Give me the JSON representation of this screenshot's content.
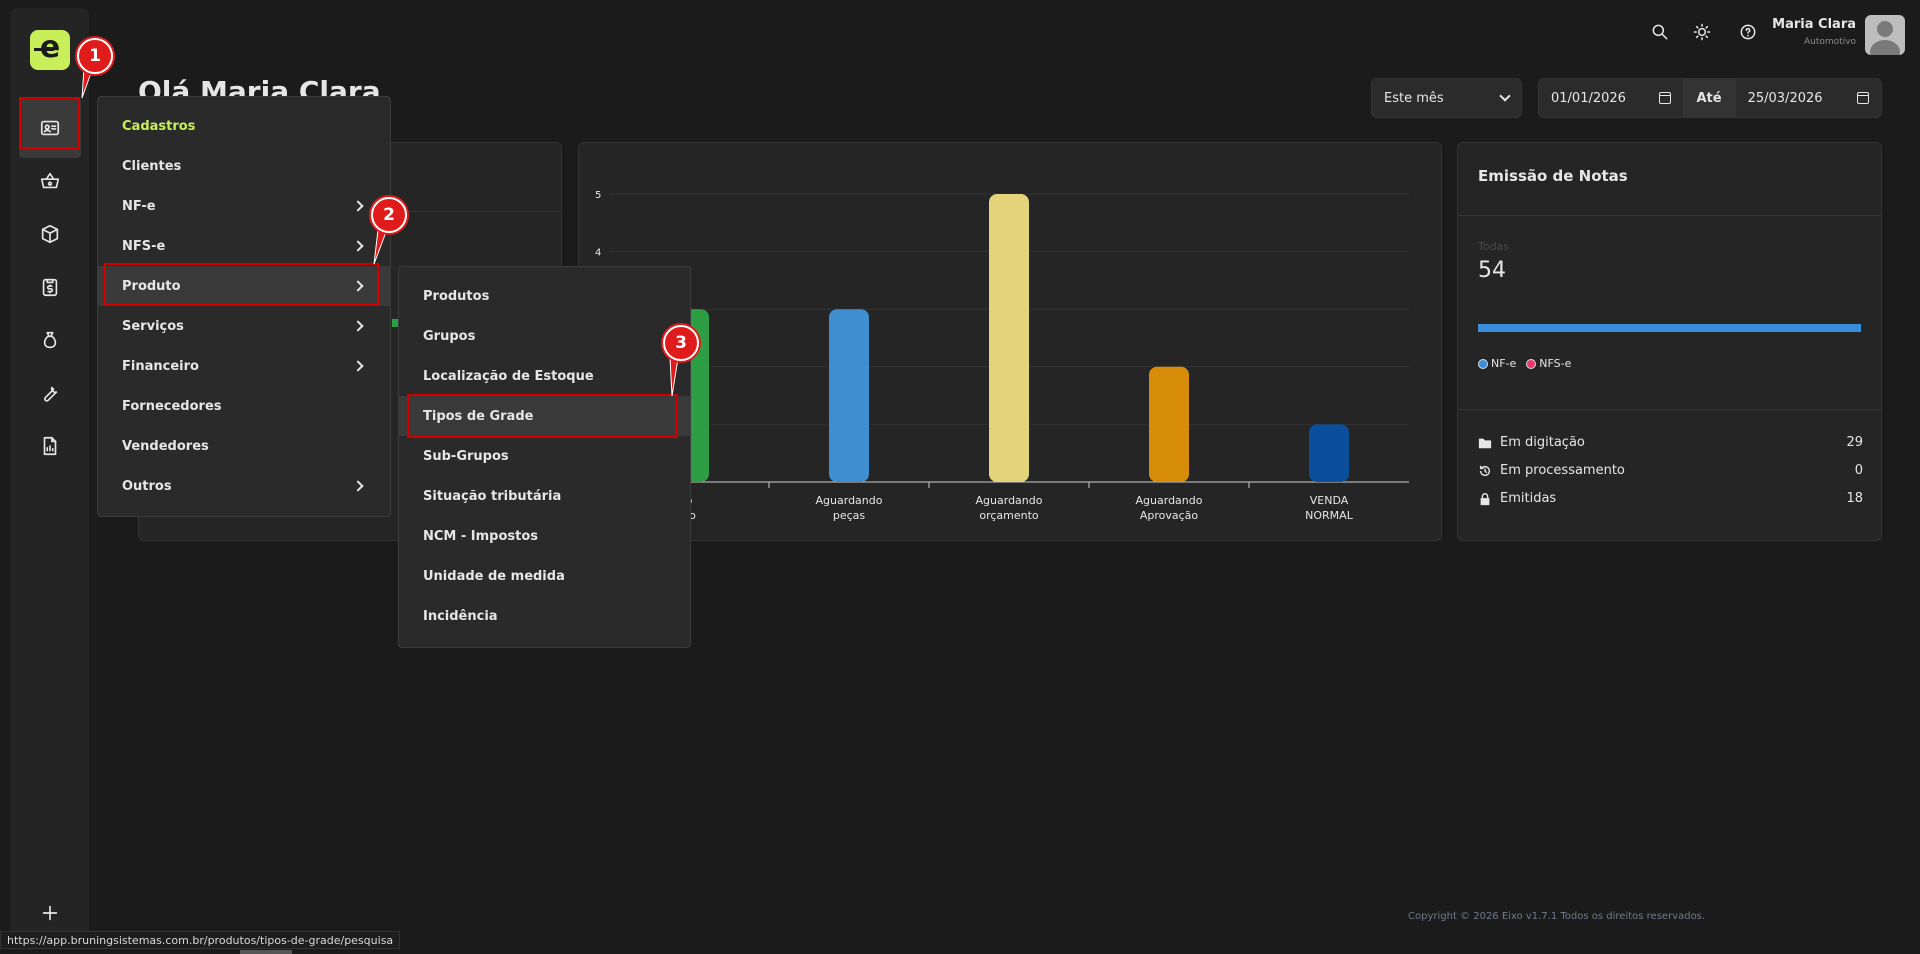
{
  "header": {
    "title": "Olá Maria Clara",
    "user_name": "Maria Clara",
    "user_role": "Automotivo",
    "icons": [
      "search-icon",
      "sun-icon",
      "help-icon"
    ]
  },
  "logo_text": "e",
  "filters": {
    "period": "Este mês",
    "date_from": "01/01/2026",
    "date_sep": "Até",
    "date_to": "25/03/2026"
  },
  "sidebar": {
    "icons": [
      "id-card-icon",
      "basket-icon",
      "box-icon",
      "clipboard-dollar-icon",
      "money-bag-icon",
      "wrench-icon",
      "report-icon",
      "plus-icon"
    ]
  },
  "menu_cadastros": {
    "title": "Cadastros",
    "items": [
      {
        "label": "Clientes",
        "submenu": false
      },
      {
        "label": "NF-e",
        "submenu": true
      },
      {
        "label": "NFS-e",
        "submenu": true
      },
      {
        "label": "Produto",
        "submenu": true
      },
      {
        "label": "Serviços",
        "submenu": true
      },
      {
        "label": "Financeiro",
        "submenu": true
      },
      {
        "label": "Fornecedores",
        "submenu": false
      },
      {
        "label": "Vendedores",
        "submenu": false
      },
      {
        "label": "Outros",
        "submenu": true
      }
    ]
  },
  "menu_produto": {
    "items": [
      "Produtos",
      "Grupos",
      "Localização de Estoque",
      "Tipos de Grade",
      "Sub-Grupos",
      "Situação tributária",
      "NCM - Impostos",
      "Unidade de medida",
      "Incidência"
    ]
  },
  "chart_data": {
    "type": "bar",
    "categories": [
      "…o …do",
      "Aguardando peças",
      "Aguardando orçamento",
      "Aguardando Aprovação",
      "VENDA NORMAL"
    ],
    "category_lines": [
      [
        "o",
        "do"
      ],
      [
        "Aguardando",
        "peças"
      ],
      [
        "Aguardando",
        "orçamento"
      ],
      [
        "Aguardando",
        "Aprovação"
      ],
      [
        "VENDA",
        "NORMAL"
      ]
    ],
    "values": [
      3,
      3,
      5,
      2,
      1
    ],
    "colors": [
      "#2e9e44",
      "#3f8ed0",
      "#e3d37a",
      "#d88d0a",
      "#0b4f9c"
    ],
    "y_ticks": [
      "4",
      "5"
    ],
    "y_tick_values": [
      4,
      5
    ],
    "ylim": [
      0,
      5
    ],
    "grid": true
  },
  "notas": {
    "title": "Emissão de Notas",
    "all_label": "Todas",
    "all_value": "54",
    "legend": [
      {
        "label": "NF-e",
        "color": "#3a8fdc"
      },
      {
        "label": "NFS-e",
        "color": "#e5386d"
      }
    ],
    "stats": [
      {
        "label": "Em digitação",
        "value": "29",
        "icon": "folder-icon"
      },
      {
        "label": "Em processamento",
        "value": "0",
        "icon": "history-icon"
      },
      {
        "label": "Emitidas",
        "value": "18",
        "icon": "lock-icon"
      }
    ]
  },
  "annotations": [
    "1",
    "2",
    "3"
  ],
  "footer": "Copyright © 2026 Eixo v1.7.1 Todos os direitos reservados.",
  "status_url": "https://app.bruningsistemas.com.br/produtos/tipos-de-grade/pesquisa"
}
